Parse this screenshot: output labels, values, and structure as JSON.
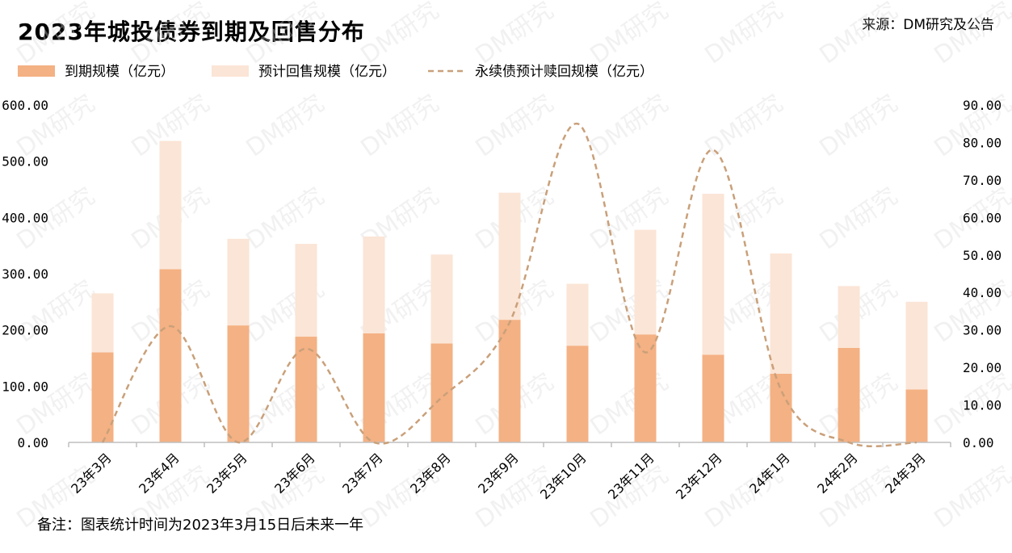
{
  "title": "2023年城投债券到期及回售分布",
  "source": "来源：DM研究及公告",
  "note": "备注：图表统计时间为2023年3月15日后未来一年",
  "watermark": "DM研究",
  "colors": {
    "maturity": "#F4B183",
    "putback": "#FBE5D6",
    "perpetual": "#C9A07A",
    "axis": "#bfbfbf"
  },
  "chart_data": {
    "type": "bar",
    "stacked": true,
    "categories": [
      "23年3月",
      "23年4月",
      "23年5月",
      "23年6月",
      "23年7月",
      "23年8月",
      "23年9月",
      "23年10月",
      "23年11月",
      "23年12月",
      "24年1月",
      "24年2月",
      "24年3月"
    ],
    "series": [
      {
        "name": "到期规模（亿元）",
        "type": "bar",
        "axis": "left",
        "values": [
          160,
          308,
          208,
          188,
          194,
          176,
          218,
          172,
          192,
          156,
          122,
          168,
          94
        ]
      },
      {
        "name": "预计回售规模（亿元）",
        "type": "bar",
        "axis": "left",
        "values": [
          105,
          228,
          154,
          165,
          172,
          158,
          226,
          110,
          186,
          286,
          214,
          110,
          156
        ]
      },
      {
        "name": "永续债预计赎回规模（亿元）",
        "type": "line",
        "style": "dashed",
        "smooth": true,
        "axis": "right",
        "values": [
          0,
          31,
          0,
          25,
          0,
          12,
          32,
          85,
          24,
          78,
          14,
          0,
          0
        ]
      }
    ],
    "yleft": {
      "min": 0,
      "max": 600,
      "step": 100,
      "ticks": [
        "0.00",
        "100.00",
        "200.00",
        "300.00",
        "400.00",
        "500.00",
        "600.00"
      ]
    },
    "yright": {
      "min": 0,
      "max": 90,
      "step": 10,
      "ticks": [
        "0.00",
        "10.00",
        "20.00",
        "30.00",
        "40.00",
        "50.00",
        "60.00",
        "70.00",
        "80.00",
        "90.00"
      ]
    },
    "legend_position": "top-left",
    "grid": false
  }
}
